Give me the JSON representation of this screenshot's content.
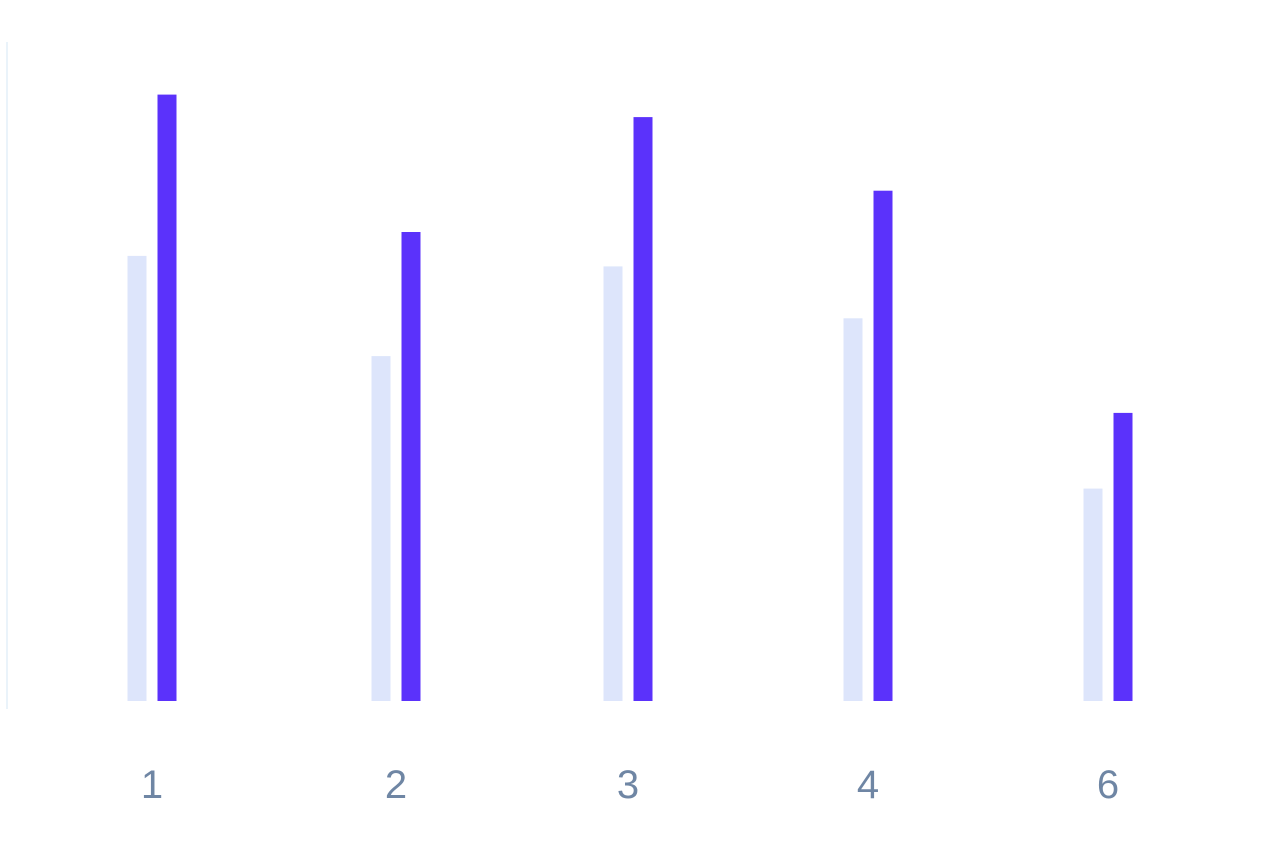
{
  "chart_data": {
    "type": "bar",
    "categories": [
      "1",
      "2",
      "3",
      "4",
      "6"
    ],
    "series": [
      {
        "values": [
          63.5,
          49.2,
          62.0,
          54.6,
          30.3
        ]
      },
      {
        "values": [
          86.5,
          66.9,
          83.3,
          72.8,
          41.1
        ]
      }
    ],
    "ylim": [
      0,
      100
    ],
    "grid": false,
    "legend": "none"
  },
  "colors": {
    "series": [
      "#dde5fb",
      "#5b32fb"
    ],
    "axis_line": "#d6e7f6",
    "tick_label": "#6f86a4",
    "background": "#ffffff"
  }
}
